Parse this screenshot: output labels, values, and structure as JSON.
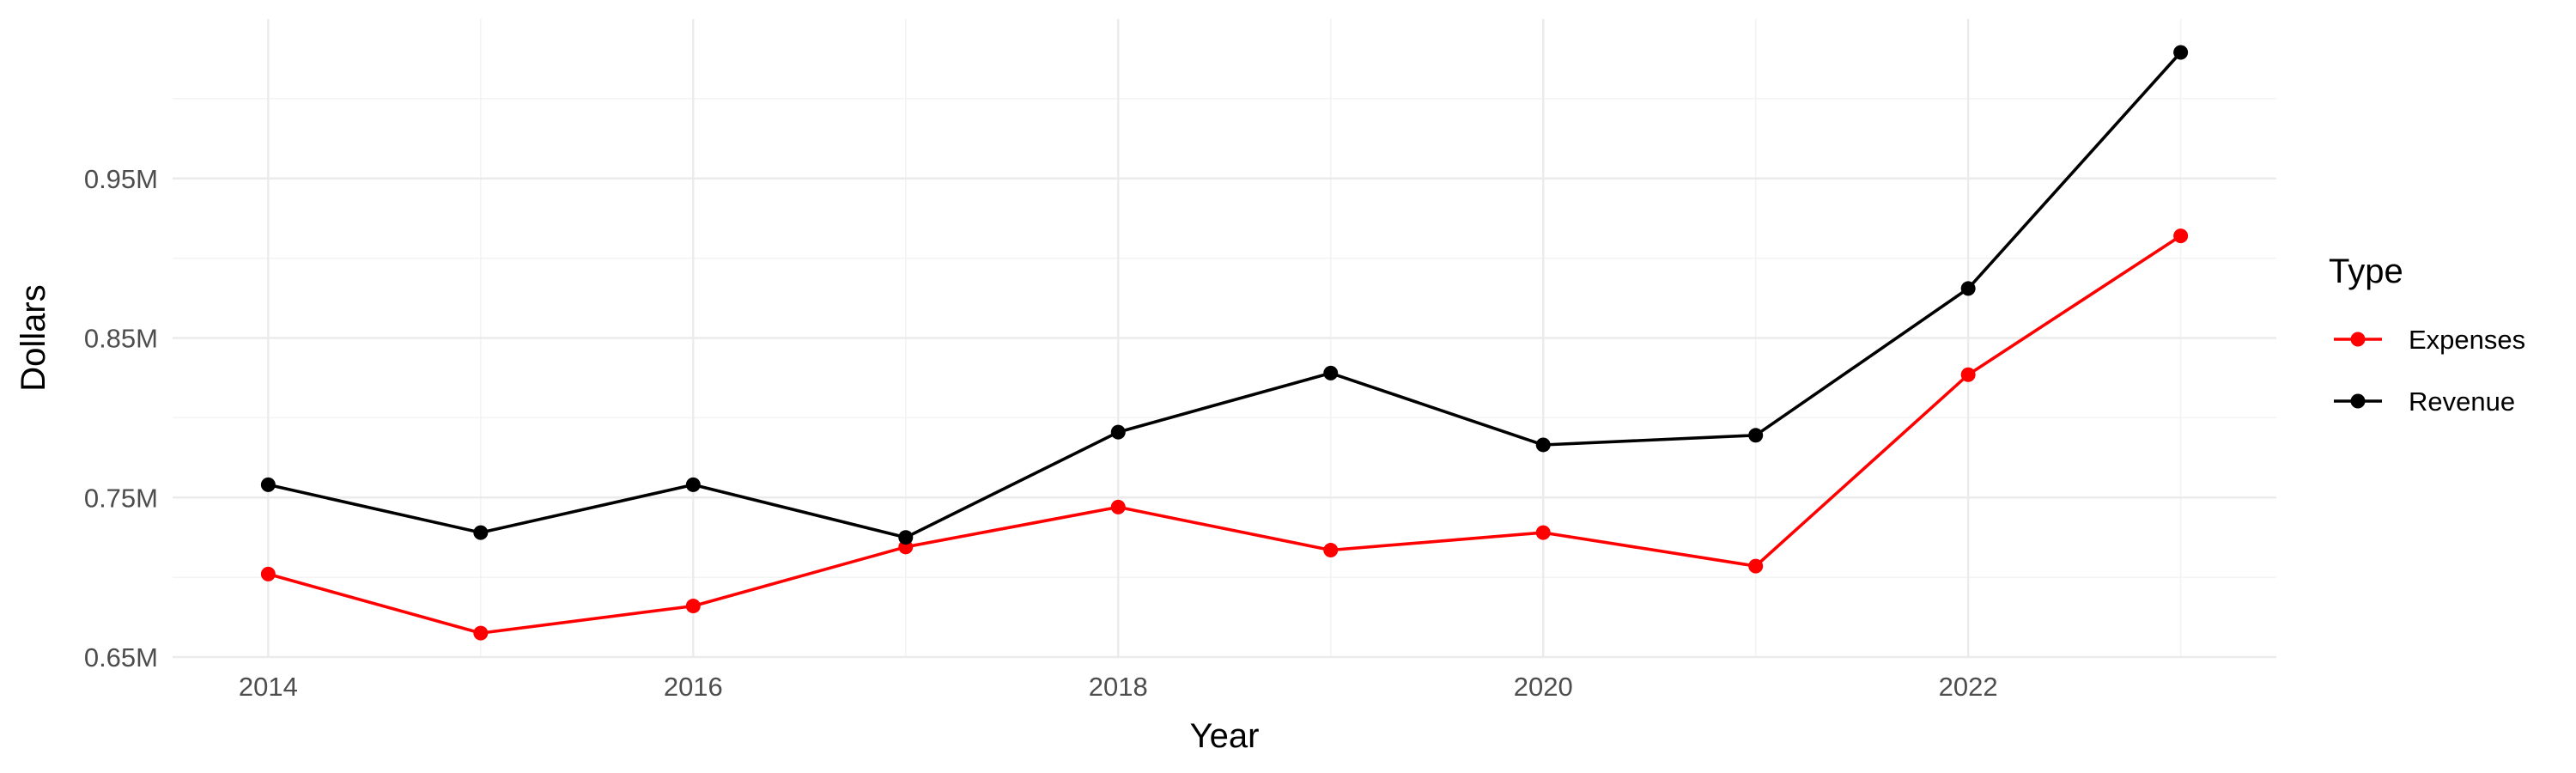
{
  "chart_data": {
    "type": "line",
    "title": "",
    "xlabel": "Year",
    "ylabel": "Dollars",
    "x": [
      2014,
      2015,
      2016,
      2017,
      2018,
      2019,
      2020,
      2021,
      2022,
      2023
    ],
    "xlim": [
      2013.55,
      2023.45
    ],
    "ylim": [
      0.65,
      1.05
    ],
    "x_ticks": [
      2014,
      2016,
      2018,
      2020,
      2022
    ],
    "x_tick_labels": [
      "2014",
      "2016",
      "2018",
      "2020",
      "2022"
    ],
    "x_minor_ticks": [
      2015,
      2017,
      2019,
      2021,
      2023
    ],
    "y_ticks": [
      0.65,
      0.75,
      0.85,
      0.95
    ],
    "y_tick_labels": [
      "0.65M",
      "0.75M",
      "0.85M",
      "0.95M"
    ],
    "y_minor_ticks": [
      0.7,
      0.8,
      0.9,
      1.0
    ],
    "grid": true,
    "legend": {
      "title": "Type",
      "position": "right"
    },
    "series": [
      {
        "name": "Expenses",
        "color": "#ff0000",
        "values": [
          0.702,
          0.665,
          0.682,
          0.719,
          0.744,
          0.717,
          0.728,
          0.707,
          0.827,
          0.914
        ]
      },
      {
        "name": "Revenue",
        "color": "#000000",
        "values": [
          0.758,
          0.728,
          0.758,
          0.725,
          0.791,
          0.828,
          0.783,
          0.789,
          0.881,
          1.029
        ]
      }
    ]
  }
}
